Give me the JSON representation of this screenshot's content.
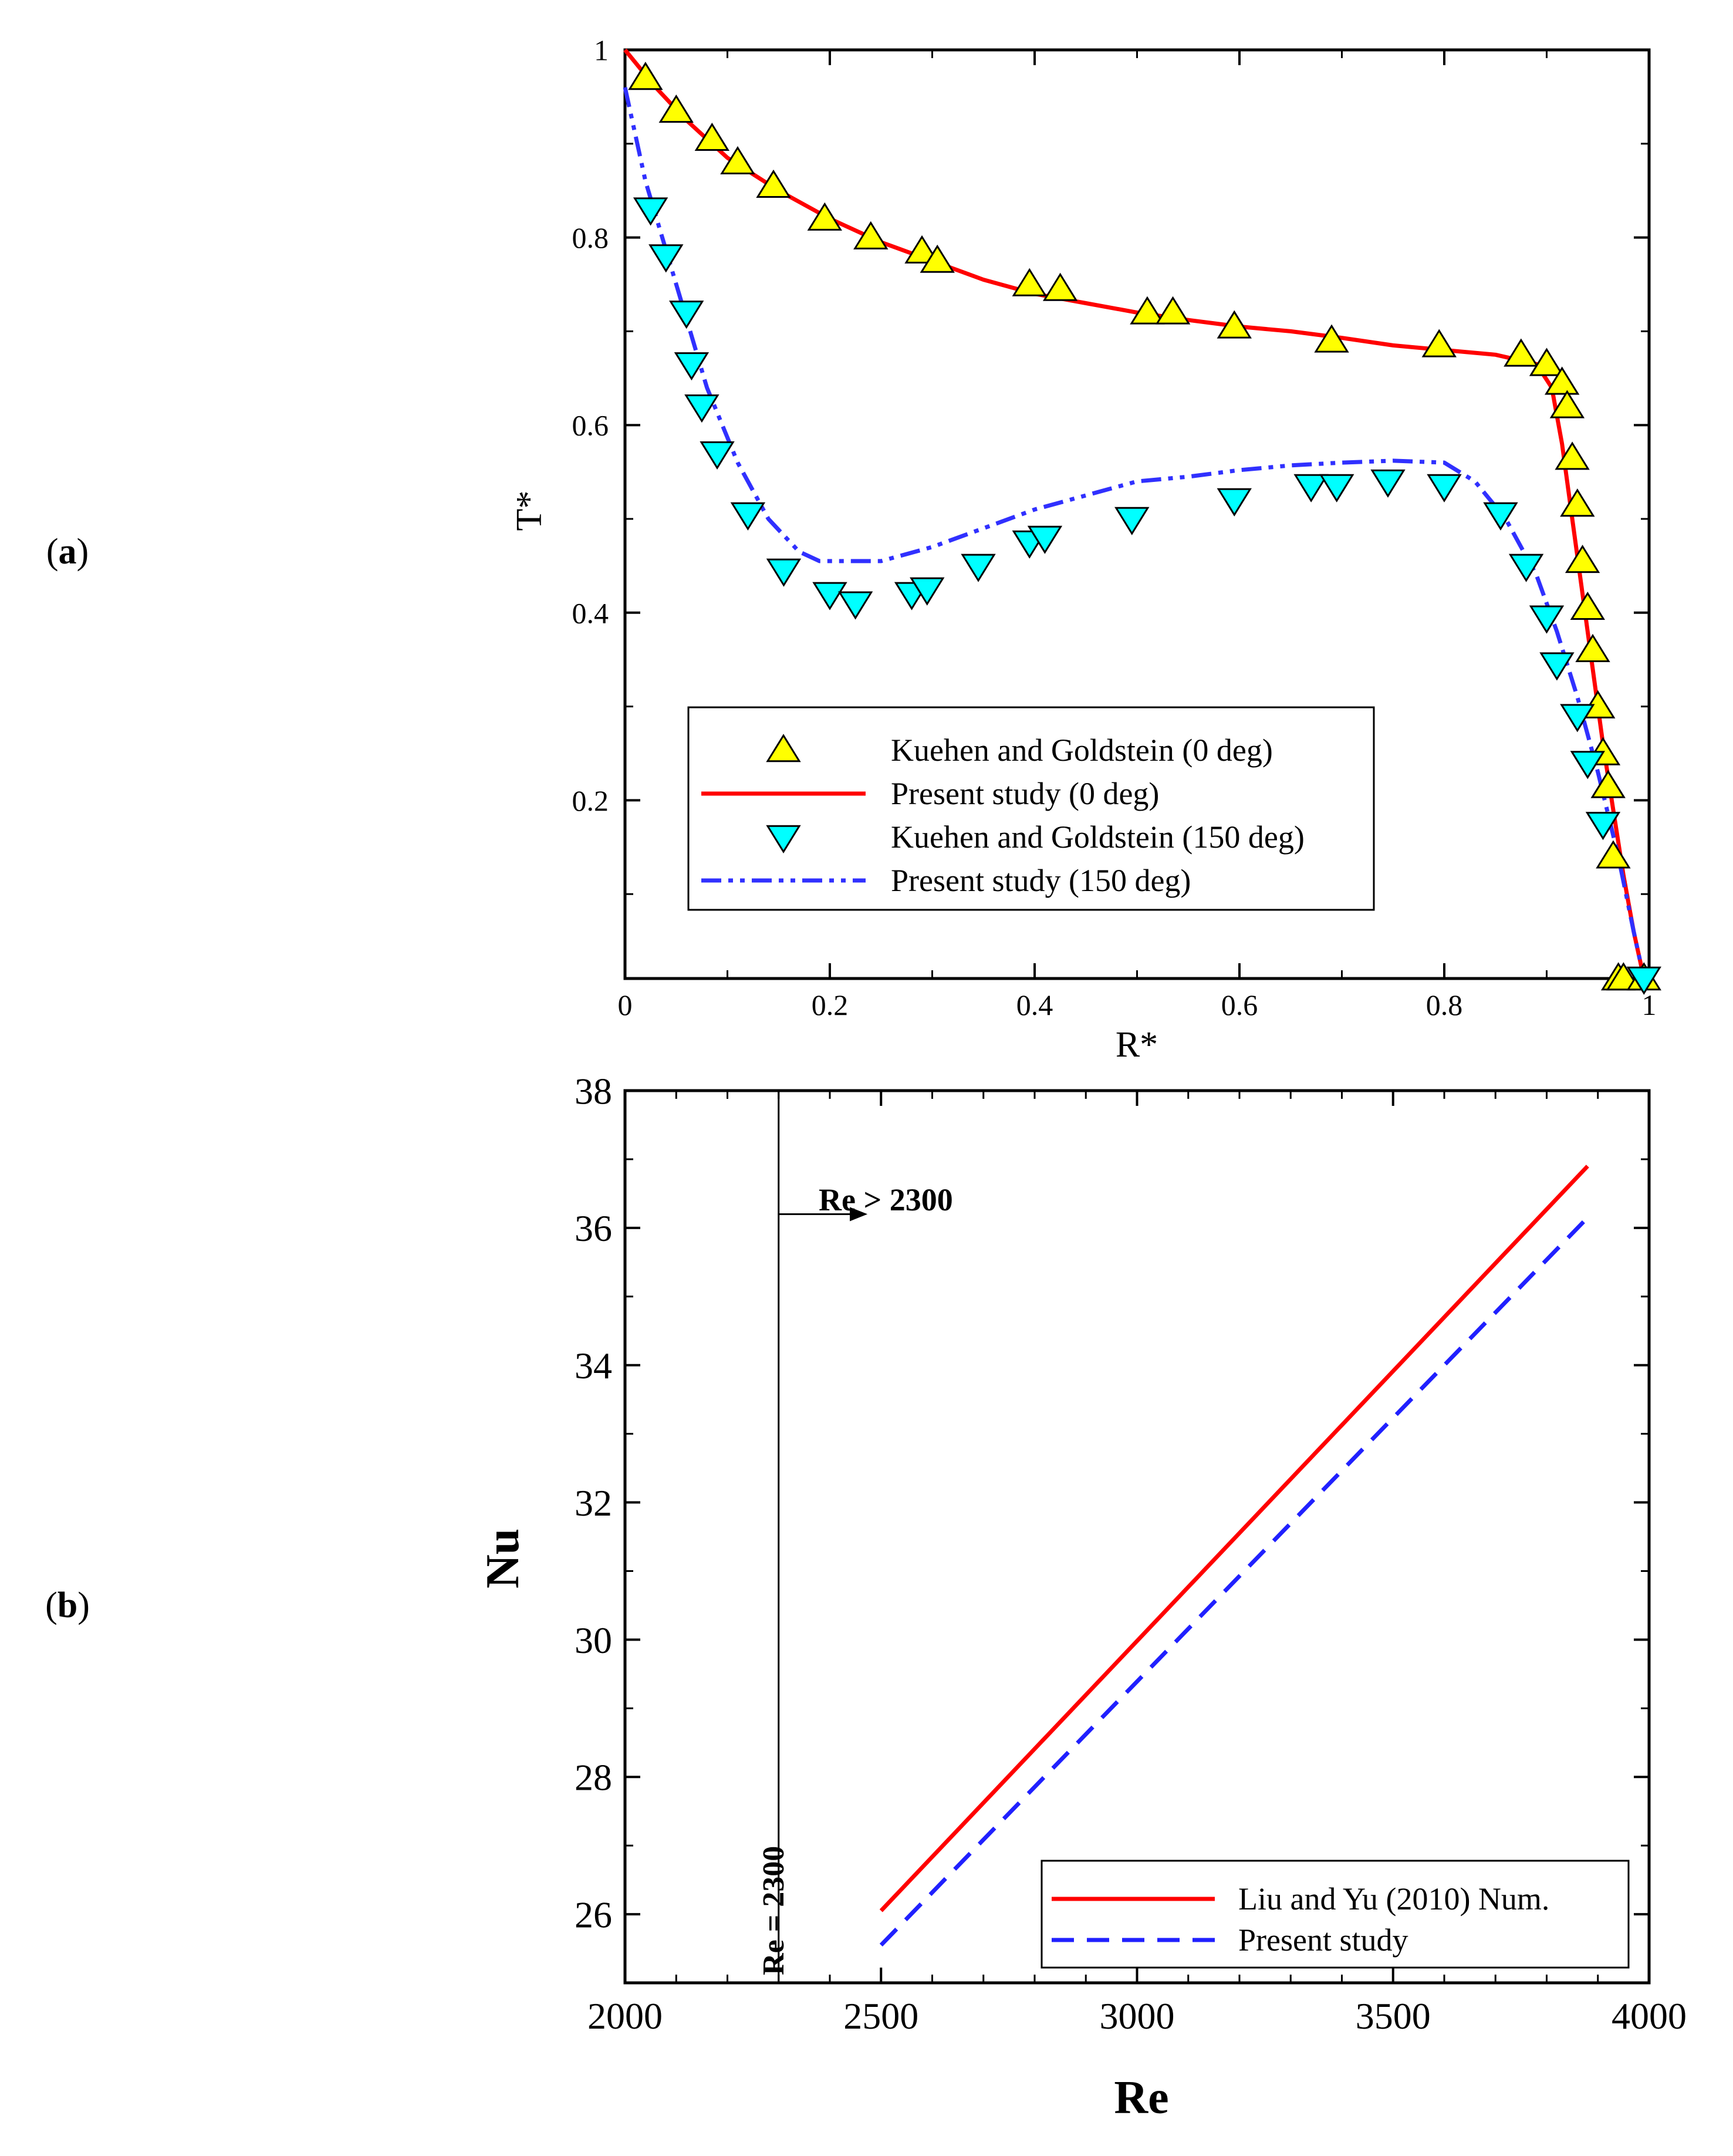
{
  "chart_data": [
    {
      "panel": "(a)",
      "type": "line",
      "xlabel": "R*",
      "ylabel": "T*",
      "xlim": [
        0,
        1
      ],
      "ylim": [
        0.01,
        1
      ],
      "xticks": [
        "0",
        "0.2",
        "0.4",
        "0.6",
        "0.8",
        "1"
      ],
      "yticks": [
        "0.2",
        "0.4",
        "0.6",
        "0.8",
        "1"
      ],
      "legend_position": "lower-center",
      "series": [
        {
          "name": "Kuehen and Goldstein (0 deg)",
          "kind": "marker-triangle-up",
          "color": "#ffff00",
          "x": [
            0.02,
            0.05,
            0.085,
            0.11,
            0.145,
            0.195,
            0.24,
            0.29,
            0.305,
            0.395,
            0.425,
            0.51,
            0.535,
            0.595,
            0.69,
            0.795,
            0.875,
            0.9,
            0.915,
            0.92,
            0.925,
            0.93,
            0.935,
            0.94,
            0.945,
            0.95,
            0.955,
            0.96,
            0.965,
            0.97,
            0.975,
            0.995
          ],
          "y": [
            0.97,
            0.935,
            0.905,
            0.88,
            0.855,
            0.82,
            0.8,
            0.785,
            0.775,
            0.75,
            0.745,
            0.72,
            0.72,
            0.705,
            0.69,
            0.685,
            0.675,
            0.665,
            0.645,
            0.62,
            0.565,
            0.515,
            0.455,
            0.405,
            0.36,
            0.3,
            0.25,
            0.215,
            0.14,
            0.01,
            0.01,
            0.01
          ]
        },
        {
          "name": "Present study (0 deg)",
          "kind": "line-solid",
          "color": "#ff0000",
          "x": [
            0,
            0.03,
            0.06,
            0.1,
            0.15,
            0.2,
            0.25,
            0.3,
            0.35,
            0.4,
            0.45,
            0.5,
            0.55,
            0.6,
            0.65,
            0.7,
            0.75,
            0.8,
            0.85,
            0.89,
            0.905,
            0.915,
            0.925,
            0.935,
            0.945,
            0.955,
            0.965,
            0.975,
            0.985,
            0.995
          ],
          "y": [
            1.0,
            0.96,
            0.925,
            0.885,
            0.85,
            0.82,
            0.795,
            0.775,
            0.755,
            0.74,
            0.73,
            0.72,
            0.712,
            0.705,
            0.7,
            0.693,
            0.685,
            0.68,
            0.675,
            0.665,
            0.64,
            0.58,
            0.5,
            0.42,
            0.34,
            0.26,
            0.19,
            0.12,
            0.06,
            0.01
          ]
        },
        {
          "name": "Kuehen and Goldstein (150 deg)",
          "kind": "marker-triangle-down",
          "color": "#00ffff",
          "x": [
            0.025,
            0.04,
            0.06,
            0.065,
            0.075,
            0.09,
            0.12,
            0.155,
            0.2,
            0.225,
            0.28,
            0.295,
            0.345,
            0.395,
            0.41,
            0.495,
            0.595,
            0.67,
            0.695,
            0.745,
            0.8,
            0.855,
            0.88,
            0.9,
            0.91,
            0.93,
            0.94,
            0.955,
            0.995
          ],
          "y": [
            0.83,
            0.78,
            0.72,
            0.665,
            0.62,
            0.57,
            0.505,
            0.445,
            0.42,
            0.41,
            0.42,
            0.425,
            0.45,
            0.475,
            0.48,
            0.5,
            0.52,
            0.535,
            0.535,
            0.54,
            0.535,
            0.505,
            0.45,
            0.395,
            0.345,
            0.29,
            0.24,
            0.175,
            0.01
          ]
        },
        {
          "name": "Present study (150 deg)",
          "kind": "line-dashdotdot",
          "color": "#3030ff",
          "x": [
            0,
            0.02,
            0.05,
            0.08,
            0.11,
            0.14,
            0.17,
            0.19,
            0.21,
            0.25,
            0.3,
            0.35,
            0.4,
            0.45,
            0.5,
            0.55,
            0.6,
            0.65,
            0.7,
            0.75,
            0.8,
            0.83,
            0.86,
            0.89,
            0.91,
            0.93,
            0.95,
            0.97,
            0.985,
            0.995
          ],
          "y": [
            0.96,
            0.86,
            0.75,
            0.64,
            0.56,
            0.5,
            0.465,
            0.455,
            0.455,
            0.455,
            0.47,
            0.49,
            0.51,
            0.525,
            0.54,
            0.545,
            0.552,
            0.557,
            0.56,
            0.562,
            0.56,
            0.54,
            0.5,
            0.44,
            0.38,
            0.31,
            0.23,
            0.14,
            0.06,
            0.01
          ]
        }
      ]
    },
    {
      "panel": "(b)",
      "type": "line",
      "xlabel": "Re",
      "ylabel": "Nu",
      "xlim": [
        2000,
        4000
      ],
      "ylim": [
        25,
        38
      ],
      "xticks": [
        "2000",
        "2500",
        "3000",
        "3500",
        "4000"
      ],
      "yticks": [
        "26",
        "28",
        "30",
        "32",
        "34",
        "36",
        "38"
      ],
      "legend_position": "bottom-right",
      "annotations": [
        {
          "text": "Re = 2300",
          "kind": "vertical-line",
          "x": 2300
        },
        {
          "text": "Re > 2300",
          "kind": "arrow",
          "from_x": 2300,
          "to_x": 2470,
          "y": 36.2
        }
      ],
      "series": [
        {
          "name": "Liu and Yu (2010) Num.",
          "kind": "line-solid",
          "color": "#ff0000",
          "x": [
            2500,
            3880
          ],
          "y": [
            26.05,
            36.9
          ]
        },
        {
          "name": "Present study",
          "kind": "line-dashed",
          "color": "#2020ff",
          "x": [
            2500,
            3880
          ],
          "y": [
            25.55,
            36.15
          ]
        }
      ]
    }
  ],
  "panel_labels": {
    "a": "(a)",
    "b": "(b)"
  }
}
